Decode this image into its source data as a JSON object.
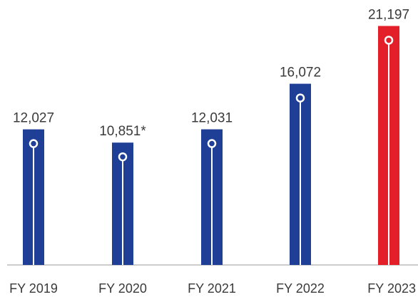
{
  "chart_data": {
    "type": "bar",
    "categories": [
      "FY 2019",
      "FY 2020",
      "FY 2021",
      "FY 2022",
      "FY 2023"
    ],
    "values": [
      12027,
      10851,
      12031,
      16072,
      21197
    ],
    "data_labels": [
      "12,027",
      "10,851*",
      "12,031",
      "16,072",
      "21,197"
    ],
    "ylim": [
      0,
      23500
    ],
    "grid": false,
    "bar_colors": [
      "#1f3f96",
      "#1f3f96",
      "#1f3f96",
      "#1f3f96",
      "#e3202a"
    ],
    "axis_color": "#9a9a9a",
    "marker_color": "#ffffff"
  }
}
